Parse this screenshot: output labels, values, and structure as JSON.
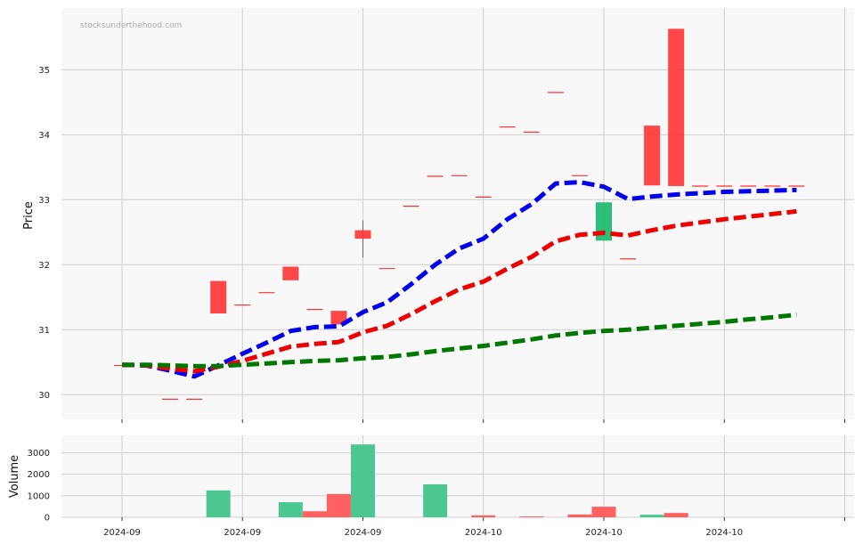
{
  "watermark": "stocksunderthehood.com",
  "chart_data": [
    {
      "type": "candlestick",
      "ylabel": "Price",
      "ylim": [
        29.62,
        35.95
      ],
      "yticks": [
        30,
        31,
        32,
        33,
        34,
        35
      ],
      "xticks": [
        {
          "pos": 0,
          "label": "2024-09"
        },
        {
          "pos": 5,
          "label": "2024-09"
        },
        {
          "pos": 10,
          "label": "2024-09"
        },
        {
          "pos": 15,
          "label": "2024-10"
        },
        {
          "pos": 20,
          "label": "2024-10"
        },
        {
          "pos": 25,
          "label": "2024-10"
        },
        {
          "pos": 30,
          "label": ""
        }
      ],
      "grid": true,
      "colors": {
        "up": "#14b86b",
        "down": "#ff3333"
      },
      "candles": [
        {
          "i": 0,
          "o": 30.45,
          "h": 30.45,
          "l": 30.45,
          "c": 30.45
        },
        {
          "i": 2,
          "o": 29.93,
          "h": 29.93,
          "l": 29.93,
          "c": 29.93
        },
        {
          "i": 3,
          "o": 29.93,
          "h": 29.93,
          "l": 29.93,
          "c": 29.93
        },
        {
          "i": 4,
          "o": 31.75,
          "h": 31.75,
          "l": 31.25,
          "c": 31.25
        },
        {
          "i": 5,
          "o": 31.38,
          "h": 31.38,
          "l": 31.38,
          "c": 31.38
        },
        {
          "i": 6,
          "o": 31.57,
          "h": 31.57,
          "l": 31.57,
          "c": 31.57
        },
        {
          "i": 7,
          "o": 31.97,
          "h": 31.97,
          "l": 31.76,
          "c": 31.76
        },
        {
          "i": 8,
          "o": 31.31,
          "h": 31.31,
          "l": 31.31,
          "c": 31.31
        },
        {
          "i": 9,
          "o": 31.29,
          "h": 31.29,
          "l": 31.08,
          "c": 31.08
        },
        {
          "i": 10,
          "o": 32.53,
          "h": 32.68,
          "l": 32.11,
          "c": 32.4
        },
        {
          "i": 11,
          "o": 31.94,
          "h": 31.94,
          "l": 31.94,
          "c": 31.94
        },
        {
          "i": 12,
          "o": 32.9,
          "h": 32.9,
          "l": 32.9,
          "c": 32.9
        },
        {
          "i": 13,
          "o": 33.36,
          "h": 33.36,
          "l": 33.36,
          "c": 33.36
        },
        {
          "i": 14,
          "o": 33.37,
          "h": 33.37,
          "l": 33.37,
          "c": 33.37
        },
        {
          "i": 15,
          "o": 33.04,
          "h": 33.04,
          "l": 33.04,
          "c": 33.04
        },
        {
          "i": 16,
          "o": 34.12,
          "h": 34.12,
          "l": 34.12,
          "c": 34.12
        },
        {
          "i": 17,
          "o": 34.04,
          "h": 34.04,
          "l": 34.04,
          "c": 34.04
        },
        {
          "i": 18,
          "o": 34.65,
          "h": 34.65,
          "l": 34.65,
          "c": 34.65
        },
        {
          "i": 19,
          "o": 33.37,
          "h": 33.37,
          "l": 33.37,
          "c": 33.37
        },
        {
          "i": 20,
          "o": 32.37,
          "h": 32.96,
          "l": 32.37,
          "c": 32.96
        },
        {
          "i": 21,
          "o": 32.09,
          "h": 32.09,
          "l": 32.09,
          "c": 32.09
        },
        {
          "i": 22,
          "o": 34.14,
          "h": 34.14,
          "l": 33.22,
          "c": 33.22
        },
        {
          "i": 23,
          "o": 35.63,
          "h": 35.63,
          "l": 33.21,
          "c": 33.21
        },
        {
          "i": 24,
          "o": 33.21,
          "h": 33.21,
          "l": 33.21,
          "c": 33.21
        },
        {
          "i": 25,
          "o": 33.21,
          "h": 33.21,
          "l": 33.21,
          "c": 33.21
        },
        {
          "i": 26,
          "o": 33.21,
          "h": 33.21,
          "l": 33.21,
          "c": 33.21
        },
        {
          "i": 27,
          "o": 33.21,
          "h": 33.21,
          "l": 33.21,
          "c": 33.21
        },
        {
          "i": 28,
          "o": 33.21,
          "h": 33.21,
          "l": 33.21,
          "c": 33.21
        }
      ],
      "moving_averages": [
        {
          "color": "#0000ee",
          "points": [
            [
              0,
              30.46
            ],
            [
              1,
              30.45
            ],
            [
              2,
              30.37
            ],
            [
              3,
              30.28
            ],
            [
              4,
              30.45
            ],
            [
              5,
              30.63
            ],
            [
              6,
              30.8
            ],
            [
              7,
              30.98
            ],
            [
              8,
              31.04
            ],
            [
              9,
              31.05
            ],
            [
              10,
              31.27
            ],
            [
              11,
              31.42
            ],
            [
              12,
              31.7
            ],
            [
              13,
              32.0
            ],
            [
              14,
              32.25
            ],
            [
              15,
              32.4
            ],
            [
              16,
              32.7
            ],
            [
              17,
              32.93
            ],
            [
              18,
              33.25
            ],
            [
              19,
              33.27
            ],
            [
              20,
              33.2
            ],
            [
              21,
              33.01
            ],
            [
              22,
              33.05
            ],
            [
              23,
              33.08
            ],
            [
              24,
              33.1
            ],
            [
              25,
              33.12
            ],
            [
              26,
              33.13
            ],
            [
              27,
              33.14
            ],
            [
              28,
              33.15
            ]
          ]
        },
        {
          "color": "#ee0000",
          "points": [
            [
              0,
              30.46
            ],
            [
              1,
              30.45
            ],
            [
              2,
              30.4
            ],
            [
              3,
              30.36
            ],
            [
              4,
              30.43
            ],
            [
              5,
              30.52
            ],
            [
              6,
              30.63
            ],
            [
              7,
              30.74
            ],
            [
              8,
              30.78
            ],
            [
              9,
              30.81
            ],
            [
              10,
              30.96
            ],
            [
              11,
              31.06
            ],
            [
              12,
              31.24
            ],
            [
              13,
              31.44
            ],
            [
              14,
              31.62
            ],
            [
              15,
              31.74
            ],
            [
              16,
              31.94
            ],
            [
              17,
              32.12
            ],
            [
              18,
              32.36
            ],
            [
              19,
              32.46
            ],
            [
              20,
              32.49
            ],
            [
              21,
              32.45
            ],
            [
              22,
              32.53
            ],
            [
              23,
              32.6
            ],
            [
              24,
              32.65
            ],
            [
              25,
              32.7
            ],
            [
              26,
              32.74
            ],
            [
              27,
              32.78
            ],
            [
              28,
              32.82
            ]
          ]
        },
        {
          "color": "#007700",
          "points": [
            [
              0,
              30.46
            ],
            [
              1,
              30.46
            ],
            [
              2,
              30.45
            ],
            [
              3,
              30.44
            ],
            [
              4,
              30.44
            ],
            [
              5,
              30.46
            ],
            [
              6,
              30.48
            ],
            [
              7,
              30.5
            ],
            [
              8,
              30.52
            ],
            [
              9,
              30.53
            ],
            [
              10,
              30.56
            ],
            [
              11,
              30.58
            ],
            [
              12,
              30.62
            ],
            [
              13,
              30.67
            ],
            [
              14,
              30.71
            ],
            [
              15,
              30.75
            ],
            [
              16,
              30.8
            ],
            [
              17,
              30.85
            ],
            [
              18,
              30.91
            ],
            [
              19,
              30.95
            ],
            [
              20,
              30.98
            ],
            [
              21,
              31.0
            ],
            [
              22,
              31.03
            ],
            [
              23,
              31.06
            ],
            [
              24,
              31.09
            ],
            [
              25,
              31.12
            ],
            [
              26,
              31.16
            ],
            [
              27,
              31.19
            ],
            [
              28,
              31.23
            ]
          ]
        }
      ]
    },
    {
      "type": "bar",
      "ylabel": "Volume",
      "ylim": [
        0,
        3800
      ],
      "yticks": [
        0,
        1000,
        2000,
        3000
      ],
      "grid": true,
      "bars": [
        {
          "i": 4,
          "v": 1250,
          "dir": "up"
        },
        {
          "i": 7,
          "v": 700,
          "dir": "up"
        },
        {
          "i": 8,
          "v": 280,
          "dir": "down"
        },
        {
          "i": 9,
          "v": 1080,
          "dir": "down"
        },
        {
          "i": 10,
          "v": 3380,
          "dir": "up"
        },
        {
          "i": 13,
          "v": 1530,
          "dir": "up"
        },
        {
          "i": 15,
          "v": 90,
          "dir": "down"
        },
        {
          "i": 17,
          "v": 40,
          "dir": "down"
        },
        {
          "i": 19,
          "v": 130,
          "dir": "down"
        },
        {
          "i": 20,
          "v": 490,
          "dir": "down"
        },
        {
          "i": 22,
          "v": 120,
          "dir": "up"
        },
        {
          "i": 23,
          "v": 200,
          "dir": "down"
        }
      ],
      "colors": {
        "up": "#4cc791",
        "down": "#ff6161"
      }
    }
  ]
}
